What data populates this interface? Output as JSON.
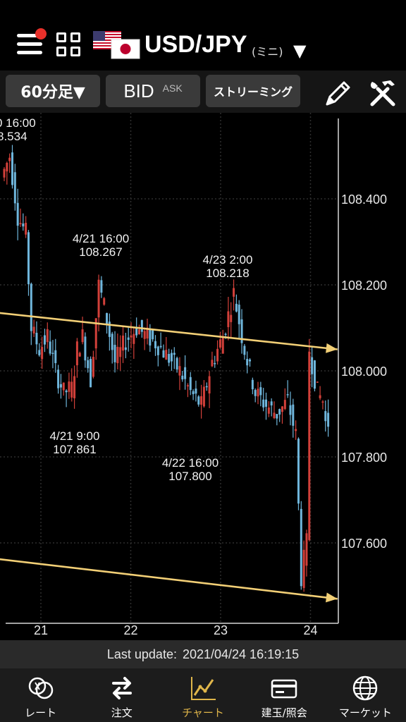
{
  "header": {
    "pair": "USD/JPY",
    "pair_sub": "(ミニ)",
    "caret": "▼",
    "has_notification": true
  },
  "toolbar": {
    "timeframe": "60分足▼",
    "bid": "BID",
    "ask": "ASK",
    "streaming": "ストリーミング"
  },
  "chart_data": {
    "type": "candlestick",
    "y_ticks": [
      "108.400",
      "108.200",
      "108.000",
      "107.800",
      "107.600"
    ],
    "y_tick_values": [
      108.4,
      108.2,
      108.0,
      107.8,
      107.6
    ],
    "ylim": [
      107.5,
      108.6
    ],
    "x_ticks": [
      "21",
      "22",
      "23",
      "24"
    ],
    "colors": {
      "up": "#d2403a",
      "down": "#6fb6dc",
      "trendline": "#f2cf76",
      "grid": "#2e2e2e"
    },
    "annotations": [
      {
        "date": "0 16:00",
        "price": "8.534"
      },
      {
        "date": "4/21 16:00",
        "price": "108.267"
      },
      {
        "date": "4/23 2:00",
        "price": "108.218"
      },
      {
        "date": "4/21 9:00",
        "price": "107.861"
      },
      {
        "date": "4/22 16:00",
        "price": "107.800"
      }
    ],
    "trendlines": [
      {
        "from": [
          -1.0,
          108.62
        ],
        "to": [
          24.3,
          108.05
        ]
      },
      {
        "from": [
          -1.0,
          108.09
        ],
        "to": [
          24.3,
          107.47
        ]
      }
    ]
  },
  "status": {
    "label": "Last update:",
    "time": "2021/04/24 16:19:15"
  },
  "nav": [
    {
      "label": "レート",
      "icon": "rate-icon"
    },
    {
      "label": "注文",
      "icon": "order-icon"
    },
    {
      "label": "チャート",
      "icon": "chart-icon",
      "active": true
    },
    {
      "label": "建玉/照会",
      "icon": "position-icon"
    },
    {
      "label": "マーケット",
      "icon": "market-icon"
    }
  ]
}
